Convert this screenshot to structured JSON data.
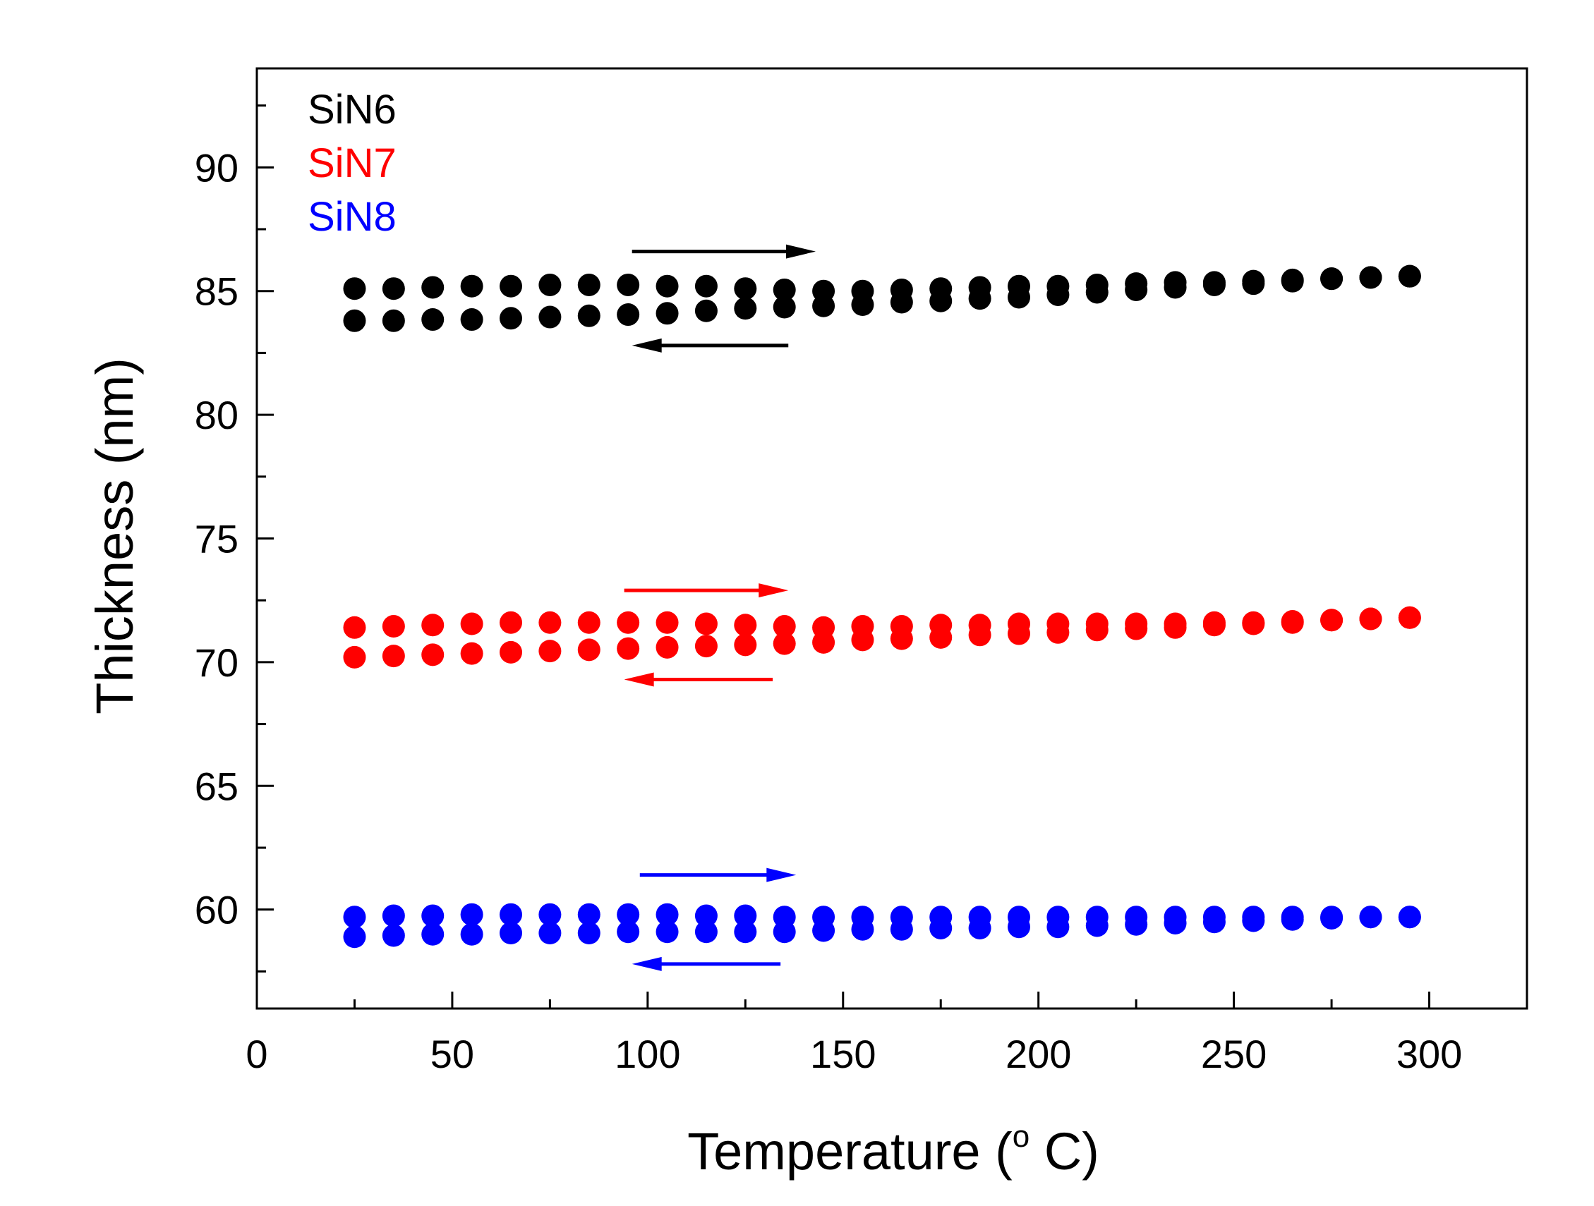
{
  "chart_data": {
    "type": "scatter",
    "title": "",
    "xlabel": "Temperature (",
    "xlabel_sup": "o",
    "xlabel_end": " C)",
    "ylabel": "Thickness (nm)",
    "xlim": [
      0,
      325
    ],
    "ylim": [
      56,
      94
    ],
    "xticks": [
      0,
      50,
      100,
      150,
      200,
      250,
      300
    ],
    "yticks": [
      60,
      65,
      70,
      75,
      80,
      85,
      90
    ],
    "x_tick_labels": [
      "0",
      "50",
      "100",
      "150",
      "200",
      "250",
      "300"
    ],
    "y_tick_labels": [
      "60",
      "65",
      "70",
      "75",
      "80",
      "85",
      "90"
    ],
    "legend_position": "top-left",
    "series": [
      {
        "name": "SiN6",
        "color": "#000000",
        "heating": {
          "x": [
            25,
            35,
            45,
            55,
            65,
            75,
            85,
            95,
            105,
            115,
            125,
            135,
            145,
            155,
            165,
            175,
            185,
            195,
            205,
            215,
            225,
            235,
            245,
            255,
            265,
            275,
            285,
            295
          ],
          "y": [
            85.1,
            85.1,
            85.15,
            85.2,
            85.2,
            85.25,
            85.25,
            85.25,
            85.2,
            85.2,
            85.1,
            85.05,
            85.0,
            85.0,
            85.05,
            85.1,
            85.15,
            85.2,
            85.2,
            85.25,
            85.3,
            85.35,
            85.35,
            85.4,
            85.45,
            85.5,
            85.55,
            85.6
          ]
        },
        "cooling": {
          "x": [
            25,
            35,
            45,
            55,
            65,
            75,
            85,
            95,
            105,
            115,
            125,
            135,
            145,
            155,
            165,
            175,
            185,
            195,
            205,
            215,
            225,
            235,
            245,
            255,
            265,
            275,
            285,
            295
          ],
          "y": [
            83.8,
            83.8,
            83.85,
            83.85,
            83.9,
            83.95,
            84.0,
            84.05,
            84.1,
            84.2,
            84.3,
            84.35,
            84.4,
            84.45,
            84.55,
            84.6,
            84.7,
            84.75,
            84.85,
            84.95,
            85.05,
            85.15,
            85.25,
            85.3,
            85.4,
            85.5,
            85.55,
            85.6
          ]
        },
        "arrow_heating": {
          "x1": 96,
          "x2": 143,
          "y": 86.6
        },
        "arrow_cooling": {
          "x1": 136,
          "x2": 96,
          "y": 82.8
        }
      },
      {
        "name": "SiN7",
        "color": "#ff0000",
        "heating": {
          "x": [
            25,
            35,
            45,
            55,
            65,
            75,
            85,
            95,
            105,
            115,
            125,
            135,
            145,
            155,
            165,
            175,
            185,
            195,
            205,
            215,
            225,
            235,
            245,
            255,
            265,
            275,
            285,
            295
          ],
          "y": [
            71.4,
            71.45,
            71.5,
            71.55,
            71.6,
            71.6,
            71.6,
            71.6,
            71.6,
            71.55,
            71.5,
            71.45,
            71.4,
            71.45,
            71.45,
            71.5,
            71.5,
            71.55,
            71.55,
            71.55,
            71.55,
            71.55,
            71.6,
            71.6,
            71.65,
            71.7,
            71.75,
            71.8
          ]
        },
        "cooling": {
          "x": [
            25,
            35,
            45,
            55,
            65,
            75,
            85,
            95,
            105,
            115,
            125,
            135,
            145,
            155,
            165,
            175,
            185,
            195,
            205,
            215,
            225,
            235,
            245,
            255,
            265,
            275,
            285,
            295
          ],
          "y": [
            70.2,
            70.25,
            70.3,
            70.35,
            70.4,
            70.45,
            70.5,
            70.55,
            70.6,
            70.65,
            70.7,
            70.75,
            70.8,
            70.9,
            70.95,
            71.0,
            71.1,
            71.15,
            71.2,
            71.3,
            71.35,
            71.4,
            71.5,
            71.55,
            71.6,
            71.7,
            71.75,
            71.8
          ]
        },
        "arrow_heating": {
          "x1": 94,
          "x2": 136,
          "y": 72.9
        },
        "arrow_cooling": {
          "x1": 132,
          "x2": 94,
          "y": 69.3
        }
      },
      {
        "name": "SiN8",
        "color": "#0000ff",
        "heating": {
          "x": [
            25,
            35,
            45,
            55,
            65,
            75,
            85,
            95,
            105,
            115,
            125,
            135,
            145,
            155,
            165,
            175,
            185,
            195,
            205,
            215,
            225,
            235,
            245,
            255,
            265,
            275,
            285,
            295
          ],
          "y": [
            59.7,
            59.75,
            59.75,
            59.8,
            59.8,
            59.8,
            59.8,
            59.8,
            59.8,
            59.75,
            59.75,
            59.7,
            59.7,
            59.7,
            59.7,
            59.7,
            59.7,
            59.7,
            59.7,
            59.7,
            59.7,
            59.7,
            59.7,
            59.7,
            59.7,
            59.7,
            59.7,
            59.7
          ]
        },
        "cooling": {
          "x": [
            25,
            35,
            45,
            55,
            65,
            75,
            85,
            95,
            105,
            115,
            125,
            135,
            145,
            155,
            165,
            175,
            185,
            195,
            205,
            215,
            225,
            235,
            245,
            255,
            265,
            275,
            285,
            295
          ],
          "y": [
            58.9,
            58.95,
            59.0,
            59.0,
            59.05,
            59.05,
            59.05,
            59.1,
            59.1,
            59.1,
            59.1,
            59.1,
            59.15,
            59.2,
            59.2,
            59.25,
            59.25,
            59.3,
            59.3,
            59.35,
            59.4,
            59.45,
            59.5,
            59.55,
            59.6,
            59.65,
            59.7,
            59.7
          ]
        },
        "arrow_heating": {
          "x1": 98,
          "x2": 138,
          "y": 61.4
        },
        "arrow_cooling": {
          "x1": 134,
          "x2": 96,
          "y": 57.8
        }
      }
    ]
  }
}
